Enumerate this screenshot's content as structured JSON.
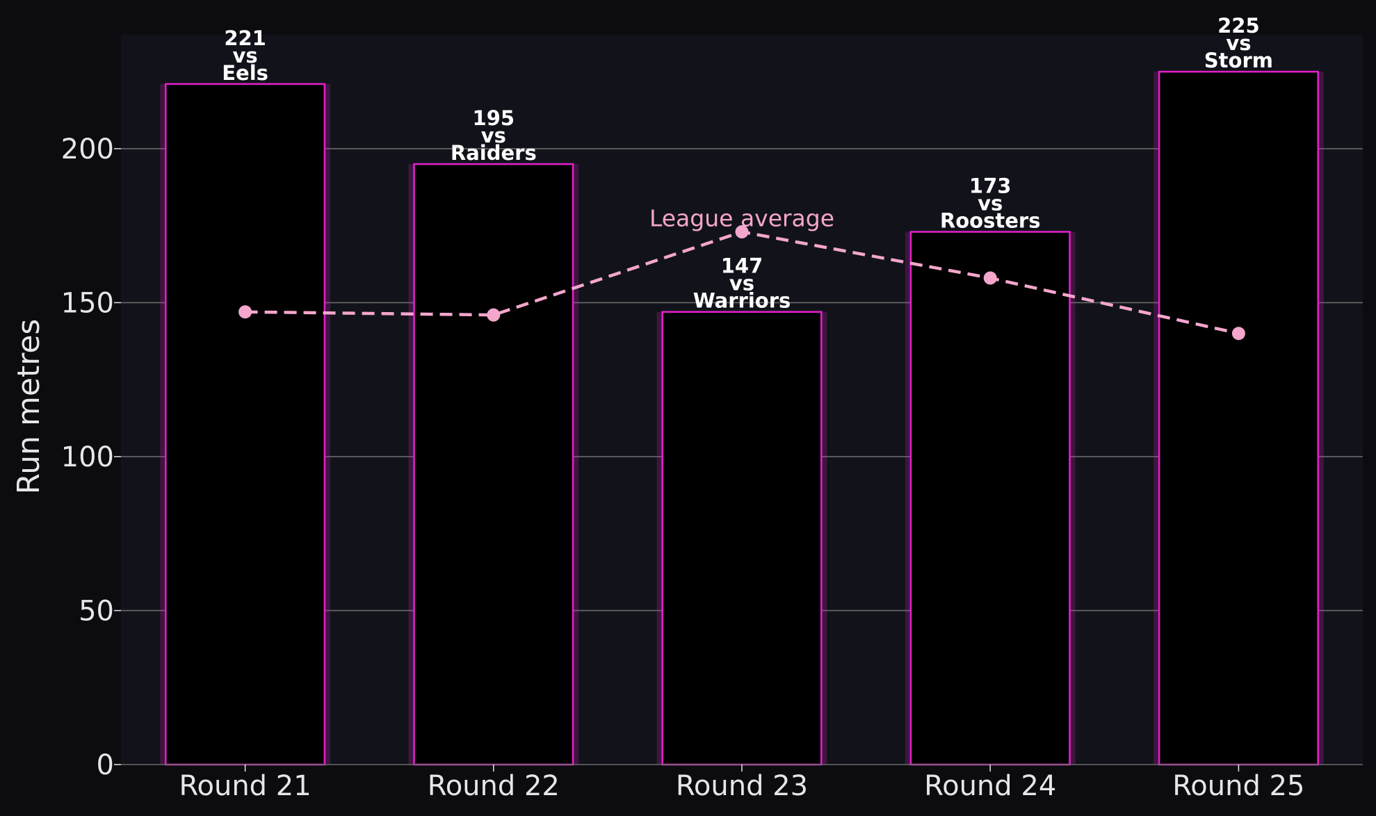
{
  "chart_data": {
    "type": "bar",
    "title": "",
    "xlabel": "",
    "ylabel": "Run metres",
    "categories": [
      "Round 21",
      "Round 22",
      "Round 23",
      "Round 24",
      "Round 25"
    ],
    "series": [
      {
        "values": [
          221,
          195,
          147,
          173,
          225
        ],
        "color": "#e020c8",
        "fill": "#000000"
      }
    ],
    "bar_labels": [
      [
        "221",
        "vs",
        "Eels"
      ],
      [
        "195",
        "vs",
        "Raiders"
      ],
      [
        "147",
        "vs",
        "Warriors"
      ],
      [
        "173",
        "vs",
        "Roosters"
      ],
      [
        "225",
        "vs",
        "Storm"
      ]
    ],
    "overlay_line": {
      "name": "League average",
      "values": [
        147,
        146,
        173,
        158,
        140
      ],
      "style": "dashed",
      "color": "#f4a6cd"
    },
    "annotations": [
      {
        "text": "League average",
        "category": "Round 23"
      }
    ],
    "yticks": [
      0,
      50,
      100,
      150,
      200
    ],
    "ylim": [
      0,
      237
    ],
    "grid": "y",
    "legend": "none",
    "colors": {
      "page_background": "#0c0c10",
      "plot_background": "#12131a",
      "gridline": "#6a6a6a",
      "text": "#e6e6e6"
    }
  }
}
